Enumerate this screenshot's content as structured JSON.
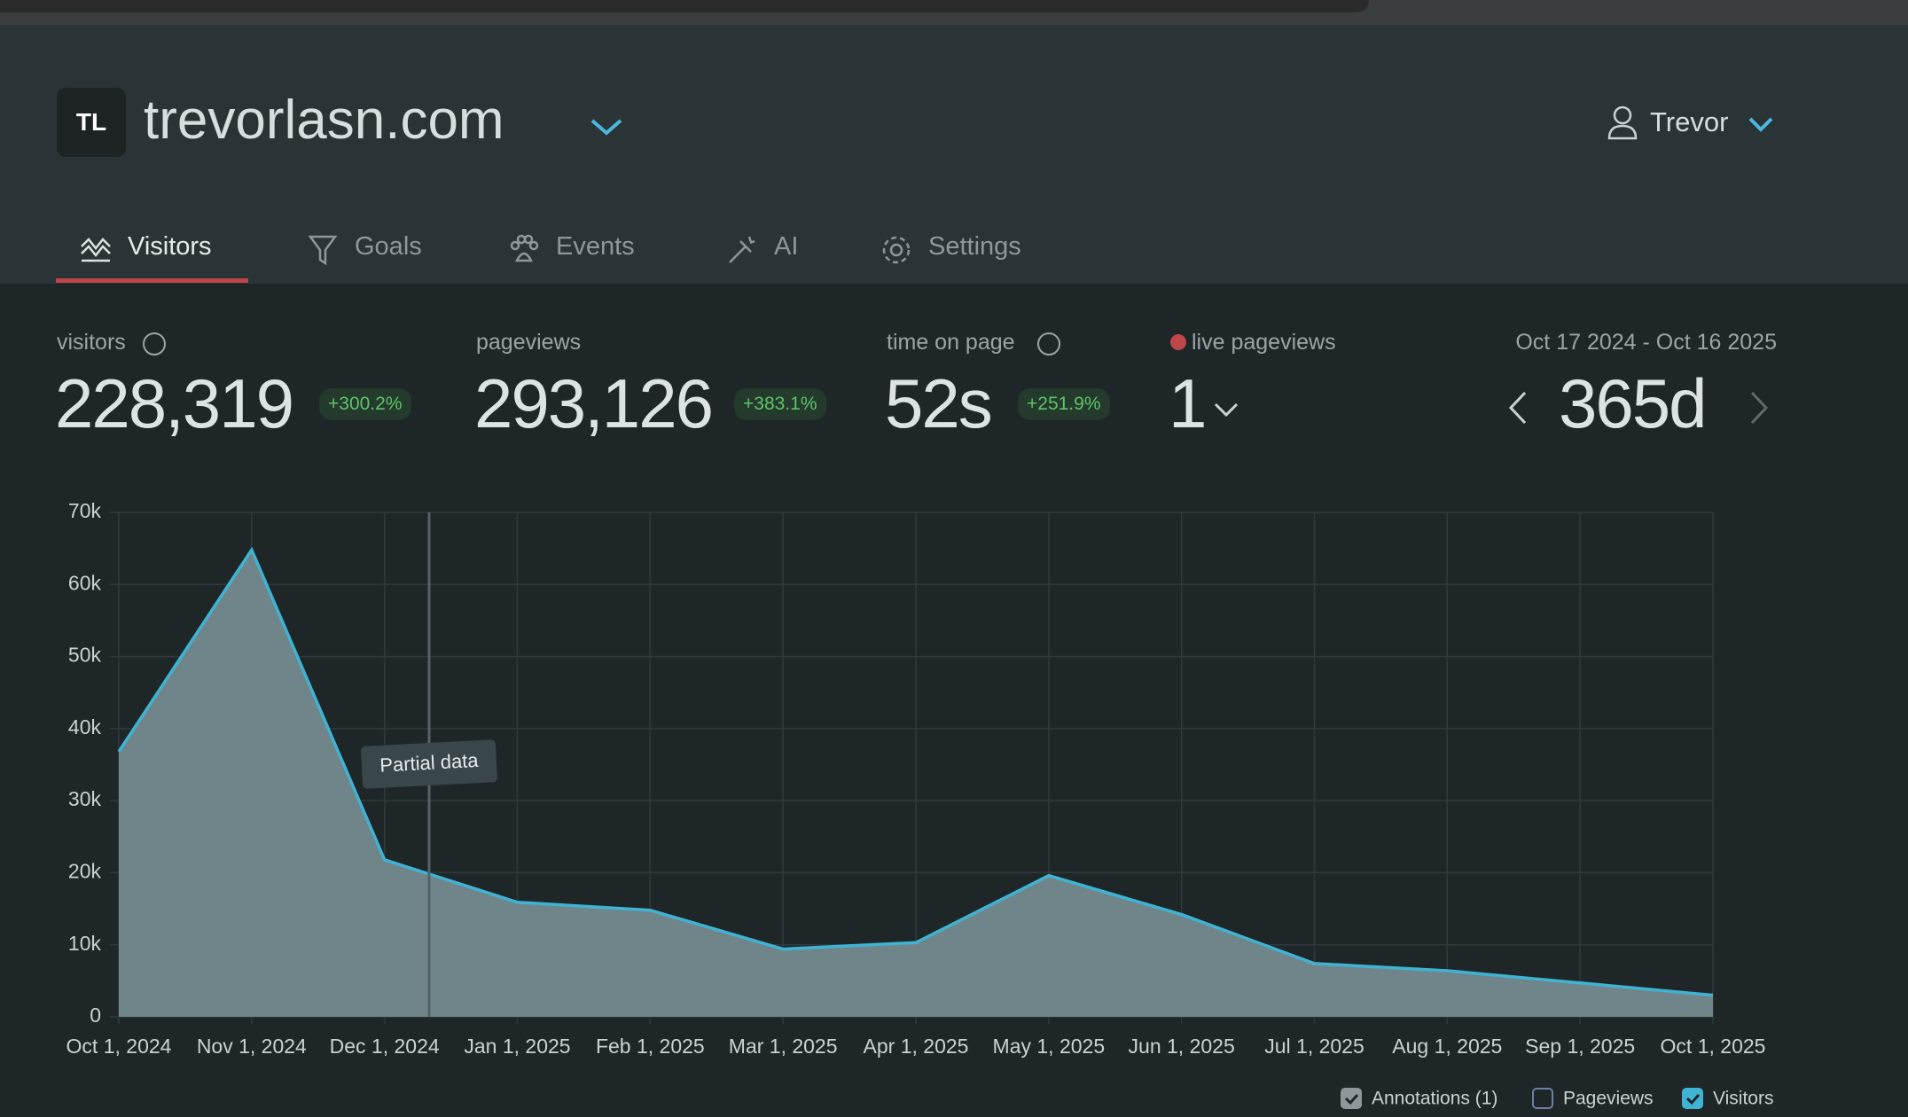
{
  "header": {
    "logo": "TL",
    "site": "trevorlasn.com",
    "user": "Trevor"
  },
  "tabs": [
    "Visitors",
    "Goals",
    "Events",
    "AI",
    "Settings"
  ],
  "stats": [
    {
      "label": "visitors",
      "value": "228,319",
      "change": "+300.2%"
    },
    {
      "label": "pageviews",
      "value": "293,126",
      "change": "+383.1%"
    },
    {
      "label": "time on page",
      "value": "52s",
      "change": "+251.9%"
    },
    {
      "label": "live pageviews",
      "value": "1"
    }
  ],
  "range": {
    "dates": "Oct 17 2024 - Oct 16 2025",
    "period": "365d"
  },
  "chart_data": {
    "type": "area",
    "categories": [
      "Oct 1, 2024",
      "Nov 1, 2024",
      "Dec 1, 2024",
      "Jan 1, 2025",
      "Feb 1, 2025",
      "Mar 1, 2025",
      "Apr 1, 2025",
      "May 1, 2025",
      "Jun 1, 2025",
      "Jul 1, 2025",
      "Aug 1, 2025",
      "Sep 1, 2025",
      "Oct 1, 2025"
    ],
    "series": [
      {
        "name": "Visitors",
        "color": "#3fb3d3",
        "values": [
          36800,
          64800,
          21800,
          15900,
          14800,
          9400,
          10300,
          19600,
          14200,
          7400,
          6400,
          4700,
          3000
        ]
      }
    ],
    "ylim": [
      0,
      70000
    ],
    "yticks": [
      0,
      {
        "value": 10000,
        "label": "10k"
      },
      {
        "value": 20000,
        "label": "20k"
      },
      {
        "value": 30000,
        "label": "30k"
      },
      {
        "value": 40000,
        "label": "40k"
      },
      {
        "value": 50000,
        "label": "50k"
      },
      {
        "value": 60000,
        "label": "60k"
      },
      {
        "value": 70000,
        "label": "70k"
      }
    ],
    "grid": true,
    "annotation": "Partial data",
    "legend": [
      {
        "name": "Annotations (1)",
        "checked": true
      },
      {
        "name": "Pageviews",
        "checked": false
      },
      {
        "name": "Visitors",
        "checked": true
      }
    ]
  }
}
